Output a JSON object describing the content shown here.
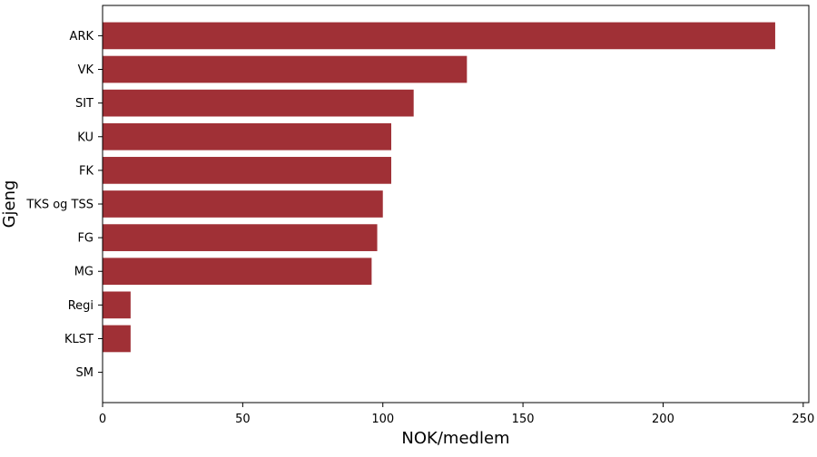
{
  "chart_data": {
    "type": "bar",
    "orientation": "horizontal",
    "title": "",
    "xlabel": "NOK/medlem",
    "ylabel": "Gjeng",
    "categories": [
      "ARK",
      "VK",
      "SIT",
      "KU",
      "FK",
      "TKS og TSS",
      "FG",
      "MG",
      "Regi",
      "KLST",
      "SM"
    ],
    "values": [
      240,
      130,
      111,
      103,
      103,
      100,
      98,
      96,
      10,
      10,
      0
    ],
    "xlim": [
      0,
      252
    ],
    "xticks": [
      0,
      50,
      100,
      150,
      200,
      250
    ],
    "bar_color": "#a03036",
    "grid": false,
    "legend": "none"
  }
}
